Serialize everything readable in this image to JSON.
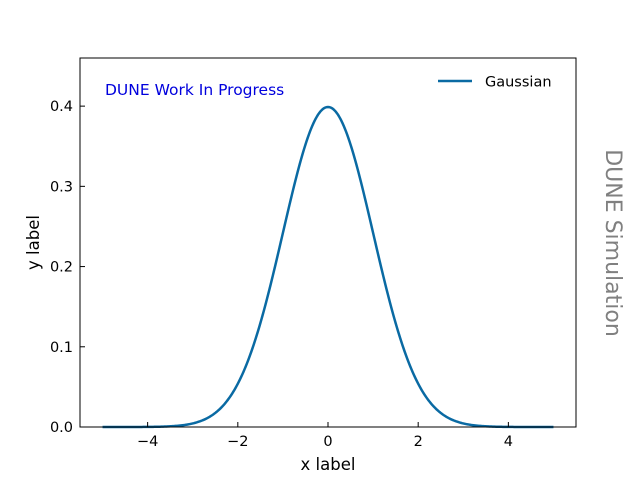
{
  "chart_data": {
    "type": "line",
    "xlabel": "x label",
    "ylabel": "y label",
    "xlim": [
      -5.5,
      5.5
    ],
    "ylim": [
      0,
      0.46
    ],
    "xticks": [
      -4,
      -2,
      0,
      2,
      4
    ],
    "xtick_labels": [
      "−4",
      "−2",
      "0",
      "2",
      "4"
    ],
    "yticks": [
      0.0,
      0.1,
      0.2,
      0.3,
      0.4
    ],
    "ytick_labels": [
      "0.0",
      "0.1",
      "0.2",
      "0.3",
      "0.4"
    ],
    "grid": false,
    "legend_position": "top-right",
    "series": [
      {
        "name": "Gaussian",
        "color": "#0a6aa3",
        "function": "normal_pdf",
        "mean": 0,
        "std": 1,
        "x_range": [
          -5,
          5
        ]
      }
    ],
    "annotations": {
      "work_in_progress": "DUNE Work In Progress",
      "work_in_progress_color": "#0000dd",
      "side_text": "DUNE Simulation",
      "side_text_color": "#808080"
    }
  }
}
